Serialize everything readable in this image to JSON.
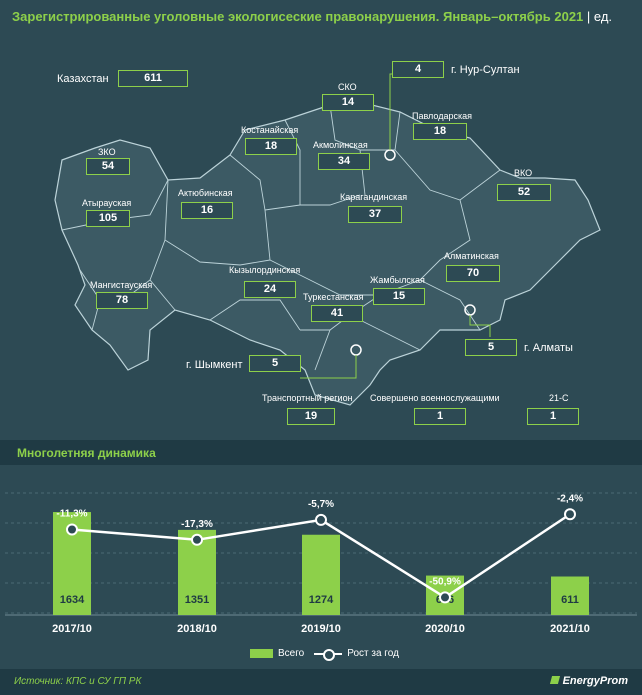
{
  "title": "Зарегистрированные уголовные экологисеские правонарушения. Январь–октябрь 2021",
  "unit": "| ед.",
  "map": {
    "total_label": "Казахстан",
    "total_value": "611",
    "regions": [
      {
        "name": "ЗКО",
        "value": "54"
      },
      {
        "name": "Атырауская",
        "value": "105"
      },
      {
        "name": "Мангистауская",
        "value": "78"
      },
      {
        "name": "Актюбинская",
        "value": "16"
      },
      {
        "name": "Костанайская",
        "value": "18"
      },
      {
        "name": "СКО",
        "value": "14"
      },
      {
        "name": "Акмолинская",
        "value": "34"
      },
      {
        "name": "Павлодарская",
        "value": "18"
      },
      {
        "name": "ВКО",
        "value": "52"
      },
      {
        "name": "Карагандинская",
        "value": "37"
      },
      {
        "name": "Кызылординская",
        "value": "24"
      },
      {
        "name": "Туркестанская",
        "value": "41"
      },
      {
        "name": "Жамбылская",
        "value": "15"
      },
      {
        "name": "Алматинская",
        "value": "70"
      },
      {
        "name": "г. Нур-Султан",
        "value": "4"
      },
      {
        "name": "г. Алматы",
        "value": "5"
      },
      {
        "name": "г. Шымкент",
        "value": "5"
      }
    ],
    "extra": [
      {
        "name": "Транспортный регион",
        "value": "19"
      },
      {
        "name": "Совершено военнослужащими",
        "value": "1"
      },
      {
        "name": "21-С",
        "value": "1"
      }
    ]
  },
  "dynamics_title": "Многолетняя динамика",
  "chart_data": {
    "type": "bar",
    "categories": [
      "2017/10",
      "2018/10",
      "2019/10",
      "2020/10",
      "2021/10"
    ],
    "series": [
      {
        "name": "Всего",
        "type": "bar",
        "values": [
          1634,
          1351,
          1274,
          626,
          611
        ],
        "color": "#8dd04a"
      },
      {
        "name": "Рост за год",
        "type": "line",
        "values": [
          -11.3,
          -17.3,
          -5.7,
          -50.9,
          -2.4
        ],
        "labels": [
          "-11,3%",
          "-17,3%",
          "-5,7%",
          "-50,9%",
          "-2,4%"
        ],
        "color": "#ffffff"
      }
    ],
    "bar_ylim": [
      0,
      1800
    ],
    "line_ylim": [
      -60,
      10
    ]
  },
  "legend": {
    "bar": "Всего",
    "line": "Рост за год"
  },
  "footer": {
    "source": "Источник: КПС и СУ ГП РК",
    "brand": "EnergyProm"
  }
}
